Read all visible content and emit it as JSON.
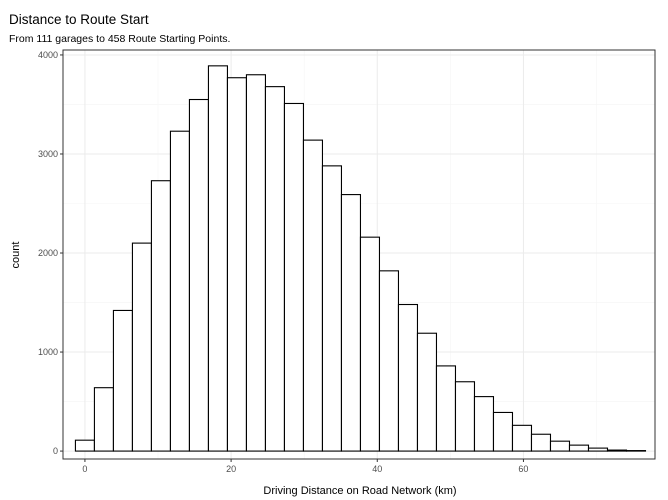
{
  "chart_data": {
    "type": "bar",
    "title": "Distance to Route Start",
    "subtitle": "From 111  garages to  458  Route Starting Points.",
    "xlabel": "Driving Distance on Road Network (km)",
    "ylabel": "count",
    "xlim": [
      -3.0,
      78.0
    ],
    "ylim": [
      -80,
      4050
    ],
    "x_ticks": [
      0,
      20,
      40,
      60
    ],
    "y_ticks": [
      0,
      1000,
      2000,
      3000,
      4000
    ],
    "bin_width": 2.6,
    "bin_centers": [
      0.0,
      2.6,
      5.2,
      7.8,
      10.4,
      13.0,
      15.6,
      18.2,
      20.8,
      23.4,
      26.0,
      28.6,
      31.2,
      33.8,
      36.4,
      39.0,
      41.6,
      44.2,
      46.8,
      49.4,
      52.0,
      54.6,
      57.2,
      59.8,
      62.4,
      65.0,
      67.6,
      70.2,
      72.8,
      75.4
    ],
    "values": [
      110,
      640,
      1420,
      2100,
      2730,
      3230,
      3550,
      3890,
      3770,
      3800,
      3680,
      3510,
      3140,
      2880,
      2590,
      2160,
      1820,
      1480,
      1190,
      860,
      700,
      550,
      390,
      260,
      170,
      100,
      60,
      30,
      10,
      5
    ],
    "grid": true,
    "legend": "none"
  }
}
